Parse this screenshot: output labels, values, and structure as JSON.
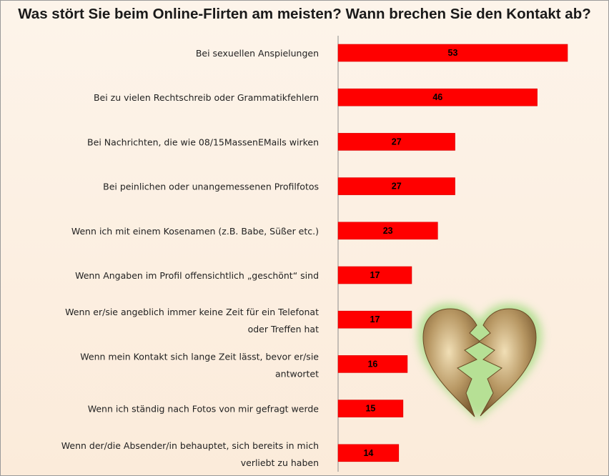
{
  "chart_data": {
    "type": "bar",
    "orientation": "horizontal",
    "title": "Was stört Sie beim Online-Flirten am meisten? Wann brechen Sie den Kontakt ab?",
    "categories": [
      "Bei sexuellen Anspielungen",
      "Bei zu vielen Rechtschreib oder Grammatikfehlern",
      "Bei Nachrichten, die wie 08/15MassenEMails wirken",
      "Bei peinlichen oder unangemessenen Profilfotos",
      "Wenn ich mit einem Kosenamen (z.B. Babe, Süßer etc.)",
      "Wenn Angaben im Profil offensichtlich „geschönt“ sind",
      "Wenn er/sie angeblich immer keine Zeit für ein Telefonat oder Treffen hat",
      "Wenn mein Kontakt sich lange Zeit lässt, bevor er/sie antwortet",
      "Wenn ich ständig nach Fotos von mir gefragt werde",
      "Wenn der/die Absender/in behauptet, sich bereits in mich verliebt zu haben"
    ],
    "category_lines": [
      [
        "Bei sexuellen Anspielungen"
      ],
      [
        "Bei zu vielen Rechtschreib oder Grammatikfehlern"
      ],
      [
        "Bei Nachrichten, die wie 08/15MassenEMails wirken"
      ],
      [
        "Bei peinlichen oder unangemessenen Profilfotos"
      ],
      [
        "Wenn ich mit einem Kosenamen (z.B. Babe, Süßer etc.)"
      ],
      [
        "Wenn Angaben im Profil offensichtlich „geschönt“ sind"
      ],
      [
        "Wenn er/sie angeblich immer keine Zeit für ein Telefonat",
        "oder Treffen hat"
      ],
      [
        "Wenn mein Kontakt sich lange Zeit lässt, bevor er/sie",
        "antwortet"
      ],
      [
        "Wenn ich ständig nach Fotos von mir gefragt werde"
      ],
      [
        "Wenn der/die Absender/in behauptet, sich bereits in mich",
        "verliebt zu haben"
      ]
    ],
    "values": [
      53,
      46,
      27,
      27,
      23,
      17,
      17,
      16,
      15,
      14
    ],
    "xlim": [
      0,
      53
    ],
    "grid": false,
    "legend": "none",
    "colors": {
      "bar": "#ff0000",
      "axis": "#8c8c8c"
    }
  },
  "decoration": {
    "icon": "broken-heart-icon"
  }
}
